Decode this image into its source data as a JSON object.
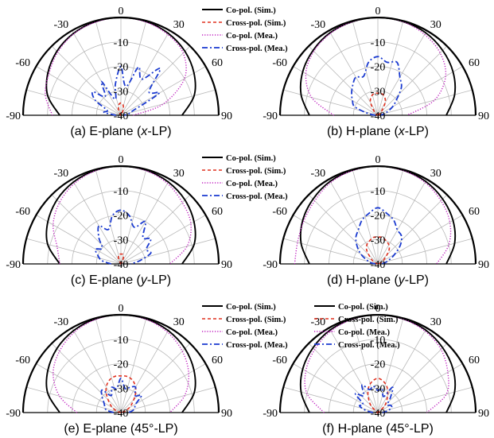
{
  "figure": {
    "colors": {
      "co_sim": "#000000",
      "cross_sim": "#e0301e",
      "co_mea": "#c020c0",
      "cross_mea": "#1a3ad0",
      "grid": "#b9b9b9"
    }
  },
  "legend": [
    "Co-pol. (Sim.)",
    "Cross-pol. (Sim.)",
    "Co-pol. (Mea.)",
    "Cross-pol. (Mea.)"
  ],
  "chart_data": [
    {
      "type": "polar-line",
      "caption_prefix": "(a) E-plane (",
      "caption_italic": "x",
      "caption_suffix": "-LP)",
      "theta_ticks": [
        "-90",
        "-60",
        "-30",
        "0",
        "30",
        "60",
        "90"
      ],
      "r_ticks": [
        "-10",
        "-20",
        "-30",
        "-40"
      ],
      "theta_range": [
        -90,
        90
      ],
      "r_range_db": [
        -40,
        0
      ],
      "legend_entries": [
        "Co-pol. (Sim.)",
        "Cross-pol. (Sim.)",
        "Co-pol. (Mea.)",
        "Cross-pol. (Mea.)"
      ],
      "series": [
        {
          "name": "Co-pol. (Sim.)",
          "theta": [
            -90,
            -75,
            -60,
            -45,
            -30,
            -15,
            0,
            15,
            30,
            45,
            60,
            75,
            90
          ],
          "db": [
            -15,
            -9,
            -5.5,
            -3,
            -1.3,
            -0.3,
            0,
            -0.3,
            -1.3,
            -3,
            -5.5,
            -9,
            -15
          ]
        },
        {
          "name": "Cross-pol. (Sim.)",
          "theta": [
            -90,
            -60,
            -40,
            -30,
            -20,
            -10,
            0,
            10,
            20,
            30,
            40,
            60,
            90
          ],
          "db": [
            -40,
            -40,
            -40,
            -39,
            -37,
            -35.5,
            -35,
            -35.5,
            -37,
            -39,
            -40,
            -40,
            -40
          ]
        },
        {
          "name": "Co-pol. (Mea.)",
          "theta": [
            -90,
            -75,
            -60,
            -45,
            -30,
            -15,
            0,
            15,
            30,
            45,
            60,
            75,
            90
          ],
          "db": [
            -12,
            -8,
            -6,
            -3.5,
            -1.5,
            -0.5,
            0,
            -0.5,
            -1.8,
            -4,
            -10,
            -22,
            -35
          ]
        },
        {
          "name": "Cross-pol. (Mea.)",
          "theta": [
            -90,
            -80,
            -70,
            -60,
            -50,
            -40,
            -30,
            -20,
            -10,
            0,
            10,
            20,
            30,
            40,
            50,
            60,
            70,
            80,
            90
          ],
          "db": [
            -38,
            -33,
            -34,
            -28,
            -25,
            -30,
            -24,
            -33,
            -27,
            -20,
            -28,
            -19,
            -23,
            -15,
            -25,
            -22,
            -35,
            -37,
            -39
          ]
        }
      ]
    },
    {
      "type": "polar-line",
      "caption_prefix": "(b) H-plane (",
      "caption_italic": "x",
      "caption_suffix": "-LP)",
      "theta_ticks": [
        "-90",
        "-60",
        "-30",
        "0",
        "30",
        "60",
        "90"
      ],
      "r_ticks": [
        "-10",
        "-20",
        "-30",
        "-40"
      ],
      "theta_range": [
        -90,
        90
      ],
      "r_range_db": [
        -40,
        0
      ],
      "legend_entries": [],
      "series": [
        {
          "name": "Co-pol. (Sim.)",
          "theta": [
            -90,
            -75,
            -60,
            -45,
            -30,
            -15,
            0,
            15,
            30,
            45,
            60,
            75,
            90
          ],
          "db": [
            -12,
            -7.5,
            -4.5,
            -2.5,
            -1,
            -0.3,
            0,
            -0.3,
            -1,
            -2.5,
            -4.5,
            -7.5,
            -12
          ]
        },
        {
          "name": "Cross-pol. (Sim.)",
          "theta": [
            -90,
            -60,
            -45,
            -30,
            -20,
            -10,
            0,
            10,
            20,
            30,
            45,
            60,
            90
          ],
          "db": [
            -40,
            -40,
            -38,
            -34,
            -32,
            -31,
            -31,
            -31,
            -32,
            -34,
            -38,
            -40,
            -40
          ]
        },
        {
          "name": "Co-pol. (Mea.)",
          "theta": [
            -90,
            -75,
            -60,
            -45,
            -30,
            -15,
            0,
            15,
            30,
            45,
            60,
            75,
            90
          ],
          "db": [
            -22,
            -12,
            -6,
            -3,
            -1.3,
            -0.3,
            0,
            -0.4,
            -1.8,
            -4,
            -8,
            -16,
            -28
          ]
        },
        {
          "name": "Cross-pol. (Mea.)",
          "theta": [
            -90,
            -80,
            -70,
            -60,
            -50,
            -40,
            -30,
            -20,
            -10,
            0,
            10,
            20,
            30,
            40,
            50,
            60,
            70,
            80,
            90
          ],
          "db": [
            -39,
            -36,
            -30,
            -28,
            -26,
            -24,
            -22,
            -23,
            -18,
            -16,
            -18,
            -17,
            -22,
            -25,
            -30,
            -33,
            -36,
            -38,
            -39
          ]
        }
      ]
    },
    {
      "type": "polar-line",
      "caption_prefix": "(c) E-plane (",
      "caption_italic": "y",
      "caption_suffix": "-LP)",
      "theta_ticks": [
        "-90",
        "-60",
        "-30",
        "0",
        "30",
        "60",
        "90"
      ],
      "r_ticks": [
        "-10",
        "-20",
        "-30",
        "-40"
      ],
      "theta_range": [
        -90,
        90
      ],
      "r_range_db": [
        -40,
        0
      ],
      "legend_entries": [
        "Co-pol. (Sim.)",
        "Cross-pol. (Sim.)",
        "Co-pol. (Mea.)",
        "Cross-pol. (Mea.)"
      ],
      "series": [
        {
          "name": "Co-pol. (Sim.)",
          "theta": [
            -90,
            -75,
            -60,
            -45,
            -30,
            -15,
            0,
            15,
            30,
            45,
            60,
            75,
            90
          ],
          "db": [
            -15,
            -9,
            -5.5,
            -3,
            -1.3,
            -0.3,
            0,
            -0.3,
            -1.3,
            -3,
            -5.5,
            -9,
            -15
          ]
        },
        {
          "name": "Cross-pol. (Sim.)",
          "theta": [
            -90,
            -60,
            -40,
            -30,
            -20,
            -10,
            0,
            10,
            20,
            30,
            40,
            60,
            90
          ],
          "db": [
            -40,
            -40,
            -40,
            -39,
            -37,
            -36,
            -36,
            -36,
            -37,
            -39,
            -40,
            -40,
            -40
          ]
        },
        {
          "name": "Co-pol. (Mea.)",
          "theta": [
            -90,
            -75,
            -60,
            -45,
            -30,
            -15,
            0,
            15,
            30,
            45,
            60,
            75,
            90
          ],
          "db": [
            -15,
            -13,
            -8,
            -4.5,
            -2,
            -0.5,
            0,
            -0.5,
            -2,
            -4.5,
            -7,
            -12,
            -20
          ]
        },
        {
          "name": "Cross-pol. (Mea.)",
          "theta": [
            -90,
            -80,
            -70,
            -60,
            -50,
            -40,
            -30,
            -20,
            -10,
            0,
            10,
            20,
            30,
            40,
            50,
            60,
            70,
            80,
            90
          ],
          "db": [
            -36,
            -32,
            -30,
            -28,
            -30,
            -26,
            -22,
            -25,
            -20,
            -18,
            -20,
            -24,
            -20,
            -26,
            -24,
            -28,
            -27,
            -32,
            -36
          ]
        }
      ]
    },
    {
      "type": "polar-line",
      "caption_prefix": "(d) H-plane (",
      "caption_italic": "y",
      "caption_suffix": "-LP)",
      "theta_ticks": [
        "-90",
        "-60",
        "-30",
        "0",
        "30",
        "60",
        "90"
      ],
      "r_ticks": [
        "-10",
        "-20",
        "-30",
        "-40"
      ],
      "theta_range": [
        -90,
        90
      ],
      "r_range_db": [
        -40,
        0
      ],
      "legend_entries": [],
      "series": [
        {
          "name": "Co-pol. (Sim.)",
          "theta": [
            -90,
            -75,
            -60,
            -45,
            -30,
            -15,
            0,
            15,
            30,
            45,
            60,
            75,
            90
          ],
          "db": [
            -12,
            -7.5,
            -4.5,
            -2.5,
            -1,
            -0.3,
            0,
            -0.3,
            -1,
            -2.5,
            -4.5,
            -7.5,
            -12
          ]
        },
        {
          "name": "Cross-pol. (Sim.)",
          "theta": [
            -90,
            -70,
            -55,
            -40,
            -30,
            -20,
            -10,
            0,
            10,
            20,
            30,
            40,
            55,
            70,
            90
          ],
          "db": [
            -40,
            -39,
            -37,
            -33,
            -31,
            -30,
            -29,
            -29,
            -29,
            -30,
            -31,
            -33,
            -37,
            -39,
            -40
          ]
        },
        {
          "name": "Co-pol. (Mea.)",
          "theta": [
            -90,
            -75,
            -60,
            -45,
            -30,
            -15,
            0,
            15,
            30,
            45,
            60,
            75,
            90
          ],
          "db": [
            -6,
            -6,
            -5,
            -3.5,
            -1.5,
            -0.4,
            0,
            -0.4,
            -1.5,
            -3.5,
            -6,
            -10,
            -16
          ]
        },
        {
          "name": "Cross-pol. (Mea.)",
          "theta": [
            -90,
            -80,
            -70,
            -60,
            -50,
            -40,
            -30,
            -20,
            -10,
            0,
            10,
            20,
            30,
            40,
            50,
            60,
            70,
            80,
            90
          ],
          "db": [
            -39,
            -37,
            -35,
            -32,
            -29,
            -26,
            -24,
            -21,
            -19,
            -17,
            -19,
            -21,
            -24,
            -25,
            -28,
            -32,
            -35,
            -37,
            -39
          ]
        }
      ]
    },
    {
      "type": "polar-line",
      "caption_prefix": "(e) E-plane (45°-LP)",
      "caption_italic": "",
      "caption_suffix": "",
      "theta_ticks": [
        "-90",
        "-60",
        "-30",
        "0",
        "30",
        "60",
        "90"
      ],
      "r_ticks": [
        "-10",
        "-20",
        "-30",
        "-40"
      ],
      "theta_range": [
        -90,
        90
      ],
      "r_range_db": [
        -40,
        0
      ],
      "legend_entries": [
        "Co-pol. (Sim.)",
        "Cross-pol. (Sim.)",
        "Co-pol. (Mea.)",
        "Cross-pol. (Mea.)"
      ],
      "series": [
        {
          "name": "Co-pol. (Sim.)",
          "theta": [
            -90,
            -75,
            -60,
            -45,
            -30,
            -15,
            0,
            15,
            30,
            45,
            60,
            75,
            90
          ],
          "db": [
            -15,
            -9,
            -5.5,
            -3,
            -1.3,
            -0.3,
            0,
            -0.3,
            -1.3,
            -3,
            -5.5,
            -9,
            -15
          ]
        },
        {
          "name": "Cross-pol. (Sim.)",
          "theta": [
            -90,
            -70,
            -55,
            -40,
            -30,
            -20,
            -10,
            0,
            10,
            20,
            30,
            40,
            55,
            70,
            90
          ],
          "db": [
            -40,
            -38,
            -35,
            -31,
            -28,
            -26,
            -25,
            -25,
            -25,
            -26,
            -28,
            -31,
            -35,
            -38,
            -40
          ]
        },
        {
          "name": "Co-pol. (Mea.)",
          "theta": [
            -90,
            -75,
            -60,
            -45,
            -30,
            -15,
            0,
            15,
            30,
            45,
            60,
            75,
            90
          ],
          "db": [
            -22,
            -14,
            -8,
            -4.5,
            -2,
            -0.5,
            0,
            -0.5,
            -2,
            -4.5,
            -8,
            -13,
            -20
          ]
        },
        {
          "name": "Cross-pol. (Mea.)",
          "theta": [
            -90,
            -80,
            -70,
            -60,
            -50,
            -40,
            -30,
            -20,
            -10,
            0,
            10,
            20,
            30,
            40,
            50,
            60,
            70,
            80,
            90
          ],
          "db": [
            -37,
            -34,
            -33,
            -32,
            -30,
            -28,
            -32,
            -29,
            -30,
            -26,
            -30,
            -29,
            -28,
            -31,
            -29,
            -33,
            -34,
            -35,
            -37
          ]
        }
      ]
    },
    {
      "type": "polar-line",
      "caption_prefix": "(f) H-plane (45°-LP)",
      "caption_italic": "",
      "caption_suffix": "",
      "theta_ticks": [
        "-90",
        "-60",
        "-30",
        "0",
        "30",
        "60",
        "90"
      ],
      "r_ticks": [
        "-10",
        "-20",
        "-30",
        "-40"
      ],
      "theta_range": [
        -90,
        90
      ],
      "r_range_db": [
        -40,
        0
      ],
      "legend_entries": [
        "Co-pol. (Sim.)",
        "Cross-pol. (Sim.)",
        "Co-pol. (Mea.)",
        "Cross-pol. (Mea.)"
      ],
      "series": [
        {
          "name": "Co-pol. (Sim.)",
          "theta": [
            -90,
            -75,
            -60,
            -45,
            -30,
            -15,
            0,
            15,
            30,
            45,
            60,
            75,
            90
          ],
          "db": [
            -12,
            -7.5,
            -4.5,
            -2.5,
            -1,
            -0.3,
            0,
            -0.3,
            -1,
            -2.5,
            -4.5,
            -7.5,
            -12
          ]
        },
        {
          "name": "Cross-pol. (Sim.)",
          "theta": [
            -90,
            -60,
            -45,
            -30,
            -20,
            -10,
            0,
            10,
            20,
            30,
            45,
            60,
            90
          ],
          "db": [
            -40,
            -40,
            -36,
            -32,
            -29,
            -27,
            -26,
            -27,
            -29,
            -32,
            -36,
            -40,
            -40
          ]
        },
        {
          "name": "Co-pol. (Mea.)",
          "theta": [
            -90,
            -75,
            -60,
            -45,
            -30,
            -15,
            0,
            15,
            30,
            45,
            60,
            75,
            90
          ],
          "db": [
            -18,
            -10,
            -6,
            -3.5,
            -1.5,
            -0.4,
            0,
            -0.4,
            -1.5,
            -3.5,
            -7,
            -11,
            -20
          ]
        },
        {
          "name": "Cross-pol. (Mea.)",
          "theta": [
            -90,
            -80,
            -70,
            -60,
            -50,
            -40,
            -30,
            -20,
            -10,
            0,
            10,
            20,
            30,
            40,
            50,
            60,
            70,
            80,
            90
          ],
          "db": [
            -38,
            -35,
            -32,
            -33,
            -28,
            -31,
            -27,
            -30,
            -29,
            -31,
            -30,
            -33,
            -28,
            -32,
            -35,
            -34,
            -34,
            -36,
            -38
          ]
        }
      ]
    }
  ]
}
